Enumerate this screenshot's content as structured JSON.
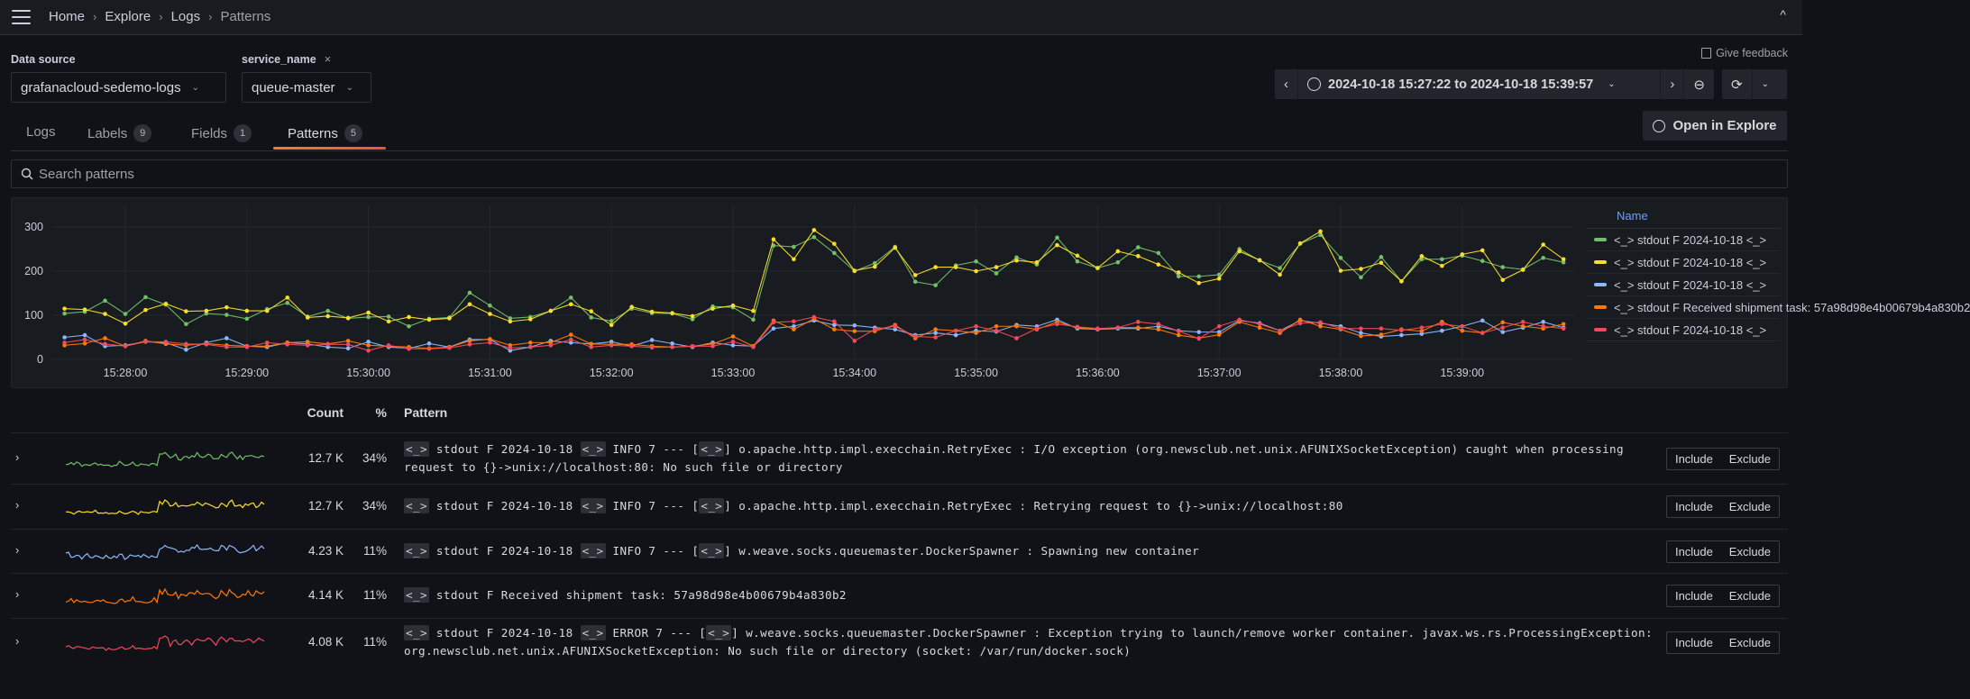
{
  "topbar": {
    "menu_icon": "hamburger-icon",
    "breadcrumbs": [
      "Home",
      "Explore",
      "Logs",
      "Patterns"
    ],
    "collapse_icon": "chevron-up-icon"
  },
  "filters": {
    "datasource": {
      "label": "Data source",
      "value": "grafanacloud-sedemo-logs"
    },
    "service": {
      "label": "service_name",
      "value": "queue-master",
      "remove": "×"
    }
  },
  "feedback": "Give feedback",
  "timepicker": {
    "range": "2024-10-18 15:27:22 to 2024-10-18 15:39:57"
  },
  "open_explore": "Open in Explore",
  "tabs": [
    {
      "label": "Logs"
    },
    {
      "label": "Labels",
      "count": "9"
    },
    {
      "label": "Fields",
      "count": "1"
    },
    {
      "label": "Patterns",
      "count": "5",
      "active": true
    }
  ],
  "search": {
    "placeholder": "Search patterns",
    "value": ""
  },
  "chart_data": {
    "type": "line",
    "ylim": [
      0,
      340
    ],
    "yticks": [
      0,
      100,
      200,
      300
    ],
    "xticks": [
      "15:28:00",
      "15:29:00",
      "15:30:00",
      "15:31:00",
      "15:32:00",
      "15:33:00",
      "15:34:00",
      "15:35:00",
      "15:36:00",
      "15:37:00",
      "15:38:00",
      "15:39:00"
    ],
    "x_first": "15:27:30",
    "x_last": "15:39:50",
    "x_step_seconds": 10,
    "grid": true,
    "legend": {
      "title": "Name",
      "placement": "right"
    },
    "series": [
      {
        "name": "<_> stdout F 2024-10-18 <_>",
        "color": "#73bf69",
        "values": [
          104,
          108,
          133,
          103,
          141,
          124,
          80,
          104,
          101,
          92,
          114,
          128,
          97,
          110,
          93,
          96,
          97,
          75,
          92,
          95,
          151,
          122,
          93,
          96,
          110,
          140,
          95,
          87,
          115,
          105,
          104,
          91,
          120,
          118,
          90,
          258,
          255,
          277,
          241,
          200,
          218,
          255,
          176,
          168,
          213,
          222,
          195,
          231,
          215,
          276,
          222,
          207,
          220,
          254,
          241,
          188,
          188,
          192,
          250,
          224,
          207,
          262,
          282,
          230,
          186,
          232,
          177,
          227,
          227,
          235,
          223,
          209,
          204,
          230,
          220
        ]
      },
      {
        "name": "<_> stdout F 2024-10-18 <_>",
        "color": "#fade2a",
        "values": [
          115,
          113,
          103,
          81,
          112,
          126,
          109,
          110,
          118,
          110,
          110,
          140,
          95,
          98,
          94,
          106,
          86,
          96,
          90,
          93,
          125,
          103,
          86,
          91,
          110,
          125,
          109,
          78,
          119,
          108,
          105,
          98,
          115,
          122,
          110,
          272,
          227,
          293,
          262,
          201,
          210,
          253,
          191,
          209,
          209,
          200,
          209,
          224,
          220,
          259,
          235,
          207,
          245,
          234,
          215,
          197,
          173,
          183,
          245,
          225,
          192,
          263,
          290,
          201,
          205,
          219,
          177,
          234,
          212,
          238,
          247,
          180,
          203,
          260,
          227
        ]
      },
      {
        "name": "<_> stdout F 2024-10-18 <_>",
        "color": "#8ab8ff",
        "values": [
          50,
          55,
          30,
          32,
          40,
          38,
          22,
          38,
          48,
          30,
          28,
          38,
          35,
          28,
          25,
          40,
          28,
          25,
          36,
          28,
          45,
          45,
          20,
          28,
          42,
          38,
          35,
          40,
          30,
          44,
          36,
          28,
          38,
          32,
          30,
          70,
          75,
          88,
          78,
          77,
          72,
          68,
          55,
          60,
          55,
          65,
          63,
          78,
          75,
          90,
          70,
          68,
          70,
          70,
          75,
          65,
          62,
          62,
          88,
          82,
          65,
          88,
          82,
          75,
          60,
          52,
          55,
          58,
          65,
          75,
          88,
          62,
          72,
          85,
          72
        ]
      },
      {
        "name": "<_> stdout F Received shipment task: 57a98d98e4b00679b4a830b2",
        "color": "#ff780a",
        "values": [
          32,
          36,
          48,
          30,
          42,
          35,
          32,
          36,
          32,
          30,
          30,
          38,
          40,
          35,
          42,
          32,
          30,
          28,
          25,
          28,
          42,
          46,
          32,
          38,
          38,
          56,
          35,
          34,
          34,
          30,
          28,
          30,
          35,
          52,
          30,
          88,
          68,
          92,
          68,
          64,
          64,
          78,
          48,
          68,
          65,
          60,
          75,
          75,
          68,
          85,
          72,
          68,
          72,
          72,
          68,
          55,
          48,
          56,
          85,
          72,
          60,
          90,
          75,
          68,
          53,
          56,
          68,
          64,
          85,
          65,
          60,
          84,
          75,
          70,
          80
        ]
      },
      {
        "name": "<_> stdout F 2024-10-18 <_>",
        "color": "#f2495c",
        "values": [
          38,
          45,
          35,
          30,
          40,
          40,
          35,
          34,
          28,
          28,
          38,
          34,
          32,
          34,
          34,
          20,
          32,
          24,
          24,
          26,
          34,
          38,
          26,
          28,
          32,
          45,
          28,
          32,
          30,
          27,
          28,
          30,
          30,
          40,
          28,
          84,
          86,
          96,
          86,
          42,
          68,
          75,
          52,
          50,
          65,
          75,
          65,
          48,
          70,
          80,
          74,
          70,
          72,
          85,
          80,
          64,
          47,
          75,
          90,
          80,
          65,
          82,
          84,
          70,
          70,
          70,
          66,
          72,
          80,
          75,
          60,
          72,
          85,
          75,
          70
        ]
      }
    ]
  },
  "table": {
    "headers": {
      "count": "Count",
      "pct": "%",
      "pattern": "Pattern"
    },
    "include": "Include",
    "exclude": "Exclude",
    "rows": [
      {
        "count": "12.7 K",
        "pct": "34%",
        "pattern": "<_> stdout F 2024-10-18 <_> INFO 7 --- [<_>] o.apache.http.impl.execchain.RetryExec : I/O exception (org.newsclub.net.unix.AFUNIXSocketException) caught when processing request to {}->unix://localhost:80: No such file or directory"
      },
      {
        "count": "12.7 K",
        "pct": "34%",
        "pattern": "<_> stdout F 2024-10-18 <_> INFO 7 --- [<_>] o.apache.http.impl.execchain.RetryExec : Retrying request to {}->unix://localhost:80"
      },
      {
        "count": "4.23 K",
        "pct": "11%",
        "pattern": "<_> stdout F 2024-10-18 <_> INFO 7 --- [<_>] w.weave.socks.queuemaster.DockerSpawner : Spawning new container"
      },
      {
        "count": "4.14 K",
        "pct": "11%",
        "pattern": "<_> stdout F Received shipment task: 57a98d98e4b00679b4a830b2"
      },
      {
        "count": "4.08 K",
        "pct": "11%",
        "pattern": "<_> stdout F 2024-10-18 <_> ERROR 7 --- [<_>] w.weave.socks.queuemaster.DockerSpawner : Exception trying to launch/remove worker container. javax.ws.rs.ProcessingException: org.newsclub.net.unix.AFUNIXSocketException: No such file or directory (socket: /var/run/docker.sock)"
      }
    ]
  }
}
